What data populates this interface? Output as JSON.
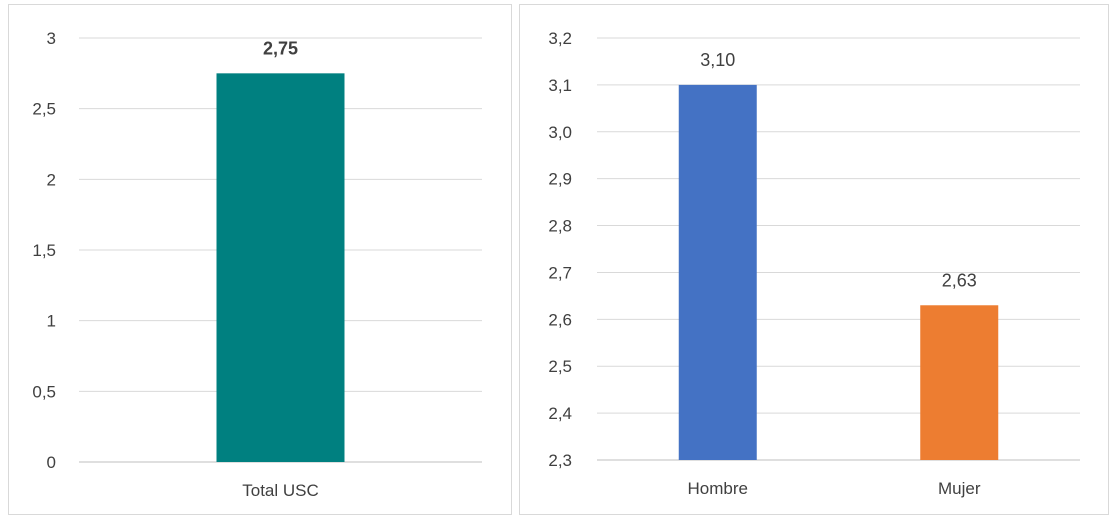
{
  "chart_data": [
    {
      "type": "bar",
      "categories": [
        "Total USC"
      ],
      "values": [
        2.75
      ],
      "data_labels": [
        "2,75"
      ],
      "ylim": [
        0,
        3
      ],
      "y_ticks": [
        "0",
        "0,5",
        "1",
        "1,5",
        "2",
        "2,5",
        "3"
      ],
      "grid": true,
      "colors": [
        "#008080"
      ],
      "data_label_bold": true
    },
    {
      "type": "bar",
      "categories": [
        "Hombre",
        "Mujer"
      ],
      "values": [
        3.1,
        2.63
      ],
      "data_labels": [
        "3,10",
        "2,63"
      ],
      "ylim": [
        2.3,
        3.2
      ],
      "y_ticks": [
        "2,3",
        "2,4",
        "2,5",
        "2,6",
        "2,7",
        "2,8",
        "2,9",
        "3,0",
        "3,1",
        "3,2"
      ],
      "grid": true,
      "colors": [
        "#4472C4",
        "#ED7D31"
      ],
      "data_label_bold": false
    }
  ]
}
